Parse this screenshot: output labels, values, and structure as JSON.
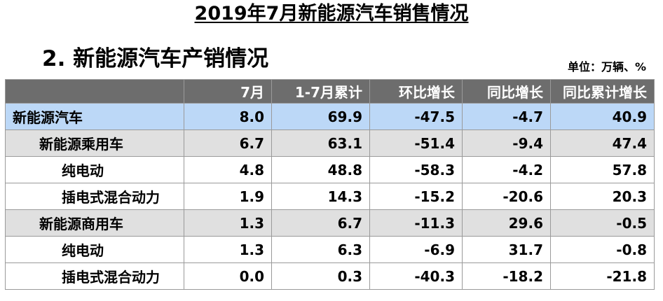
{
  "document": {
    "title": "2019年7月新能源汽车销售情况",
    "section_title": "2. 新能源汽车产销情况",
    "unit_note": "单位：万辆、%"
  },
  "table": {
    "headers": [
      "",
      "7月",
      "1-7月累计",
      "环比增长",
      "同比增长",
      "同比累计增长"
    ],
    "rows": [
      {
        "level": 0,
        "label": "新能源汽车",
        "values": [
          "8.0",
          "69.9",
          "-47.5",
          "-4.7",
          "40.9"
        ]
      },
      {
        "level": 1,
        "label": "新能源乘用车",
        "values": [
          "6.7",
          "63.1",
          "-51.4",
          "-9.4",
          "47.4"
        ]
      },
      {
        "level": 2,
        "label": "纯电动",
        "values": [
          "4.8",
          "48.8",
          "-58.3",
          "-4.2",
          "57.8"
        ]
      },
      {
        "level": 2,
        "label": "插电式混合动力",
        "values": [
          "1.9",
          "14.3",
          "-15.2",
          "-20.6",
          "20.3"
        ]
      },
      {
        "level": 1,
        "label": "新能源商用车",
        "values": [
          "1.3",
          "6.7",
          "-11.3",
          "29.6",
          "-0.5"
        ]
      },
      {
        "level": 2,
        "label": "纯电动",
        "values": [
          "1.3",
          "6.3",
          "-6.9",
          "31.7",
          "-0.8"
        ]
      },
      {
        "level": 2,
        "label": "插电式混合动力",
        "values": [
          "0.0",
          "0.3",
          "-40.3",
          "-18.2",
          "-21.8"
        ]
      }
    ]
  },
  "colors": {
    "header_bg": "#6d6d6d",
    "total_row_bg": "#bcd8f7",
    "category_row_bg": "#e0e0e0",
    "detail_row_bg": "#ffffff",
    "grid_line": "#9a9a9a"
  }
}
